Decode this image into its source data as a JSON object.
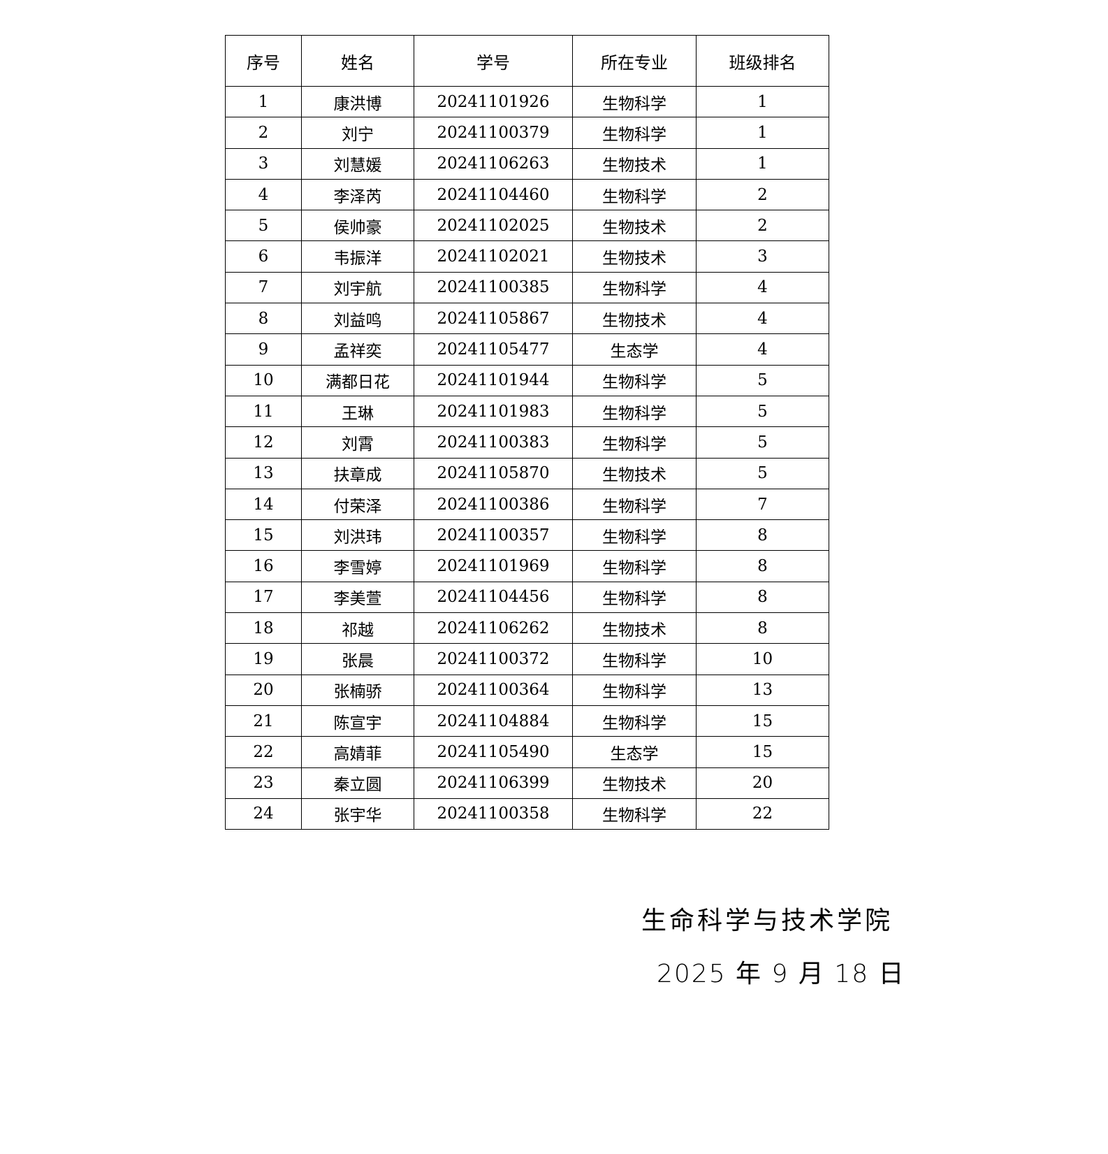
{
  "table": {
    "headers": [
      "序号",
      "姓名",
      "学号",
      "所在专业",
      "班级排名"
    ],
    "rows": [
      [
        "1",
        "康洪博",
        "20241101926",
        "生物科学",
        "1"
      ],
      [
        "2",
        "刘宁",
        "20241100379",
        "生物科学",
        "1"
      ],
      [
        "3",
        "刘慧媛",
        "20241106263",
        "生物技术",
        "1"
      ],
      [
        "4",
        "李泽芮",
        "20241104460",
        "生物科学",
        "2"
      ],
      [
        "5",
        "侯帅豪",
        "20241102025",
        "生物技术",
        "2"
      ],
      [
        "6",
        "韦振洋",
        "20241102021",
        "生物技术",
        "3"
      ],
      [
        "7",
        "刘宇航",
        "20241100385",
        "生物科学",
        "4"
      ],
      [
        "8",
        "刘益鸣",
        "20241105867",
        "生物技术",
        "4"
      ],
      [
        "9",
        "孟祥奕",
        "20241105477",
        "生态学",
        "4"
      ],
      [
        "10",
        "满都日花",
        "20241101944",
        "生物科学",
        "5"
      ],
      [
        "11",
        "王琳",
        "20241101983",
        "生物科学",
        "5"
      ],
      [
        "12",
        "刘霄",
        "20241100383",
        "生物科学",
        "5"
      ],
      [
        "13",
        "扶章成",
        "20241105870",
        "生物技术",
        "5"
      ],
      [
        "14",
        "付荣泽",
        "20241100386",
        "生物科学",
        "7"
      ],
      [
        "15",
        "刘洪玮",
        "20241100357",
        "生物科学",
        "8"
      ],
      [
        "16",
        "李雪婷",
        "20241101969",
        "生物科学",
        "8"
      ],
      [
        "17",
        "李美萱",
        "20241104456",
        "生物科学",
        "8"
      ],
      [
        "18",
        "祁越",
        "20241106262",
        "生物技术",
        "8"
      ],
      [
        "19",
        "张晨",
        "20241100372",
        "生物科学",
        "10"
      ],
      [
        "20",
        "张楠骄",
        "20241100364",
        "生物科学",
        "13"
      ],
      [
        "21",
        "陈宣宇",
        "20241104884",
        "生物科学",
        "15"
      ],
      [
        "22",
        "高婧菲",
        "20241105490",
        "生态学",
        "15"
      ],
      [
        "23",
        "秦立圆",
        "20241106399",
        "生物技术",
        "20"
      ],
      [
        "24",
        "张宇华",
        "20241100358",
        "生物科学",
        "22"
      ]
    ]
  },
  "footer": {
    "organization": "生命科学与技术学院",
    "date": "2025 年 9 月 18 日"
  }
}
